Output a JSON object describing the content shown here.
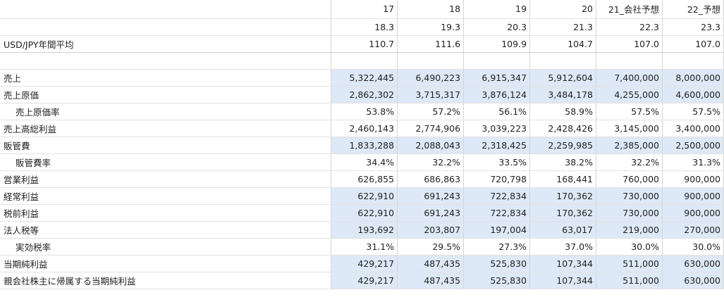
{
  "header_rows": [
    {
      "label": "",
      "values": [
        "17",
        "18",
        "19",
        "20",
        "21_会社予想",
        "22_予想"
      ]
    },
    {
      "label": "",
      "values": [
        "18.3",
        "19.3",
        "20.3",
        "21.3",
        "22.3",
        "23.3"
      ]
    },
    {
      "label": "USD/JPY年間平均",
      "values": [
        "110.7",
        "111.6",
        "109.9",
        "104.7",
        "107.0",
        "107.0"
      ]
    }
  ],
  "rows": [
    {
      "label": "売上",
      "indent": false,
      "highlight": true,
      "values": [
        "5,322,445",
        "6,490,223",
        "6,915,347",
        "5,912,604",
        "7,400,000",
        "8,000,000"
      ]
    },
    {
      "label": "売上原価",
      "indent": false,
      "highlight": true,
      "values": [
        "2,862,302",
        "3,715,317",
        "3,876,124",
        "3,484,178",
        "4,255,000",
        "4,600,000"
      ]
    },
    {
      "label": "売上原価率",
      "indent": true,
      "highlight": false,
      "values": [
        "53.8%",
        "57.2%",
        "56.1%",
        "58.9%",
        "57.5%",
        "57.5%"
      ]
    },
    {
      "label": "売上高総利益",
      "indent": false,
      "highlight": false,
      "values": [
        "2,460,143",
        "2,774,906",
        "3,039,223",
        "2,428,426",
        "3,145,000",
        "3,400,000"
      ]
    },
    {
      "label": "販管費",
      "indent": false,
      "highlight": true,
      "values": [
        "1,833,288",
        "2,088,043",
        "2,318,425",
        "2,259,985",
        "2,385,000",
        "2,500,000"
      ]
    },
    {
      "label": "販管費率",
      "indent": true,
      "highlight": false,
      "values": [
        "34.4%",
        "32.2%",
        "33.5%",
        "38.2%",
        "32.2%",
        "31.3%"
      ]
    },
    {
      "label": "営業利益",
      "indent": false,
      "highlight": false,
      "values": [
        "626,855",
        "686,863",
        "720,798",
        "168,441",
        "760,000",
        "900,000"
      ]
    },
    {
      "label": "経常利益",
      "indent": false,
      "highlight": true,
      "values": [
        "622,910",
        "691,243",
        "722,834",
        "170,362",
        "730,000",
        "900,000"
      ]
    },
    {
      "label": "税前利益",
      "indent": false,
      "highlight": true,
      "values": [
        "622,910",
        "691,243",
        "722,834",
        "170,362",
        "730,000",
        "900,000"
      ]
    },
    {
      "label": "法人税等",
      "indent": false,
      "highlight": true,
      "values": [
        "193,692",
        "203,807",
        "197,004",
        "63,017",
        "219,000",
        "270,000"
      ]
    },
    {
      "label": "実効税率",
      "indent": true,
      "highlight": false,
      "values": [
        "31.1%",
        "29.5%",
        "27.3%",
        "37.0%",
        "30.0%",
        "30.0%"
      ]
    },
    {
      "label": "当期純利益",
      "indent": false,
      "highlight": true,
      "values": [
        "429,217",
        "487,435",
        "525,830",
        "107,344",
        "511,000",
        "630,000"
      ]
    },
    {
      "label": "親会社株主に帰属する当期純利益",
      "indent": false,
      "highlight": true,
      "values": [
        "429,217",
        "487,435",
        "525,830",
        "107,344",
        "511,000",
        "630,000"
      ]
    }
  ],
  "colors": {
    "highlight": "#dde9f6",
    "grid": "#d6d6d6"
  }
}
